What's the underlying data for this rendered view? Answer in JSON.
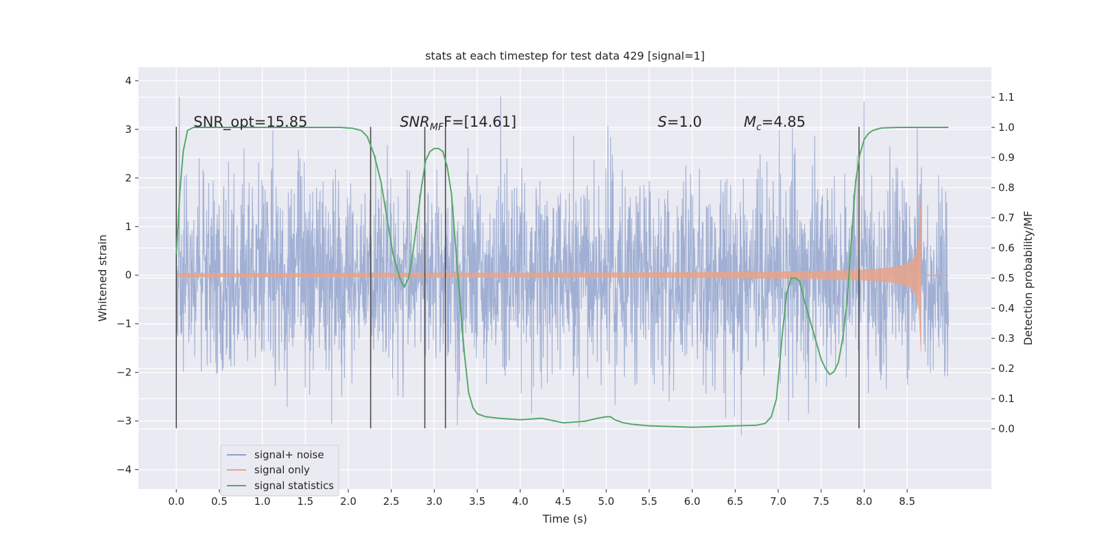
{
  "chart_data": {
    "type": "line",
    "title": "stats at each timestep for test data 429 [signal=1]",
    "xlabel": "Time (s)",
    "ylabel": "Whitened strain",
    "ylabel_right": "Detection probability/MF",
    "xlim": [
      -0.44,
      9.48
    ],
    "ylim": [
      -4.4,
      4.28
    ],
    "ylim_right": [
      -0.2,
      1.2
    ],
    "x_ticks": [
      "0.0",
      "0.5",
      "1.0",
      "1.5",
      "2.0",
      "2.5",
      "3.0",
      "3.5",
      "4.0",
      "4.5",
      "5.0",
      "5.5",
      "6.0",
      "6.5",
      "7.0",
      "7.5",
      "8.0",
      "8.5"
    ],
    "x_tick_values": [
      0,
      0.5,
      1,
      1.5,
      2,
      2.5,
      3,
      3.5,
      4,
      4.5,
      5,
      5.5,
      6,
      6.5,
      7,
      7.5,
      8,
      8.5
    ],
    "y_ticks": [
      "4",
      "3",
      "2",
      "1",
      "0",
      "−1",
      "−2",
      "−3",
      "−4"
    ],
    "y_tick_values": [
      4,
      3,
      2,
      1,
      0,
      -1,
      -2,
      -3,
      -4
    ],
    "y_ticks_right": [
      "1.1",
      "1.0",
      "0.9",
      "0.8",
      "0.7",
      "0.6",
      "0.5",
      "0.4",
      "0.3",
      "0.2",
      "0.1",
      "0.0"
    ],
    "y_tick_values_right": [
      1.1,
      1.0,
      0.9,
      0.8,
      0.7,
      0.6,
      0.5,
      0.4,
      0.3,
      0.2,
      0.1,
      0.0
    ],
    "grid": true,
    "legend_position": "lower-left",
    "annotations": {
      "snr_opt": "SNR_opt=15.85",
      "snr_mf_main": "SNR",
      "snr_mf_sub": "MF",
      "snr_mf_rest": "F=[14.61]",
      "s_main": "S",
      "s_rest": "=1.0",
      "mc_main": "M",
      "mc_sub": "c",
      "mc_rest": "=4.85"
    },
    "annotation_x": [
      0.2,
      2.6,
      5.6,
      6.6
    ],
    "vlines_x": [
      0.0,
      2.26,
      2.89,
      3.13,
      7.94
    ],
    "vline_range": [
      -3.15,
      3.05
    ],
    "series": [
      {
        "name": "signal+ noise",
        "color": "#8da0cb",
        "kind": "noise",
        "t_start": 0.0,
        "t_end": 8.98,
        "amplitude": 1.0,
        "seed": 429
      },
      {
        "name": "signal only",
        "color": "#e8a48a",
        "kind": "chirp",
        "t_start": 0.0,
        "t_end": 8.66,
        "t_merge": 8.66,
        "peak": 1.65,
        "floor": 0.02
      },
      {
        "name": "signal statistics",
        "color": "#55a868",
        "kind": "line",
        "x": [
          0.0,
          0.04,
          0.08,
          0.13,
          0.2,
          0.3,
          0.45,
          0.7,
          1.0,
          1.5,
          1.9,
          2.05,
          2.15,
          2.22,
          2.3,
          2.38,
          2.45,
          2.52,
          2.6,
          2.65,
          2.7,
          2.75,
          2.8,
          2.85,
          2.9,
          2.95,
          3.0,
          3.05,
          3.1,
          3.15,
          3.2,
          3.25,
          3.3,
          3.35,
          3.4,
          3.45,
          3.5,
          3.6,
          3.75,
          4.0,
          4.25,
          4.5,
          4.75,
          4.9,
          5.0,
          5.05,
          5.1,
          5.2,
          5.3,
          5.5,
          6.0,
          6.5,
          6.75,
          6.85,
          6.92,
          6.98,
          7.05,
          7.1,
          7.15,
          7.2,
          7.25,
          7.3,
          7.4,
          7.5,
          7.55,
          7.6,
          7.65,
          7.7,
          7.75,
          7.8,
          7.85,
          7.9,
          7.95,
          8.0,
          8.05,
          8.1,
          8.2,
          8.4,
          8.7,
          8.98
        ],
        "y": [
          0.58,
          0.78,
          0.92,
          0.99,
          1.0,
          1.0,
          1.0,
          1.0,
          1.0,
          1.0,
          1.0,
          0.997,
          0.99,
          0.97,
          0.91,
          0.82,
          0.7,
          0.58,
          0.5,
          0.47,
          0.5,
          0.58,
          0.69,
          0.8,
          0.89,
          0.92,
          0.93,
          0.93,
          0.92,
          0.87,
          0.78,
          0.6,
          0.42,
          0.25,
          0.12,
          0.07,
          0.05,
          0.04,
          0.035,
          0.03,
          0.035,
          0.02,
          0.025,
          0.035,
          0.04,
          0.04,
          0.03,
          0.02,
          0.015,
          0.01,
          0.005,
          0.01,
          0.012,
          0.018,
          0.04,
          0.1,
          0.32,
          0.45,
          0.5,
          0.5,
          0.49,
          0.43,
          0.33,
          0.23,
          0.2,
          0.18,
          0.19,
          0.22,
          0.3,
          0.42,
          0.62,
          0.82,
          0.91,
          0.96,
          0.98,
          0.99,
          0.998,
          1.0,
          1.0,
          1.0
        ]
      }
    ]
  }
}
